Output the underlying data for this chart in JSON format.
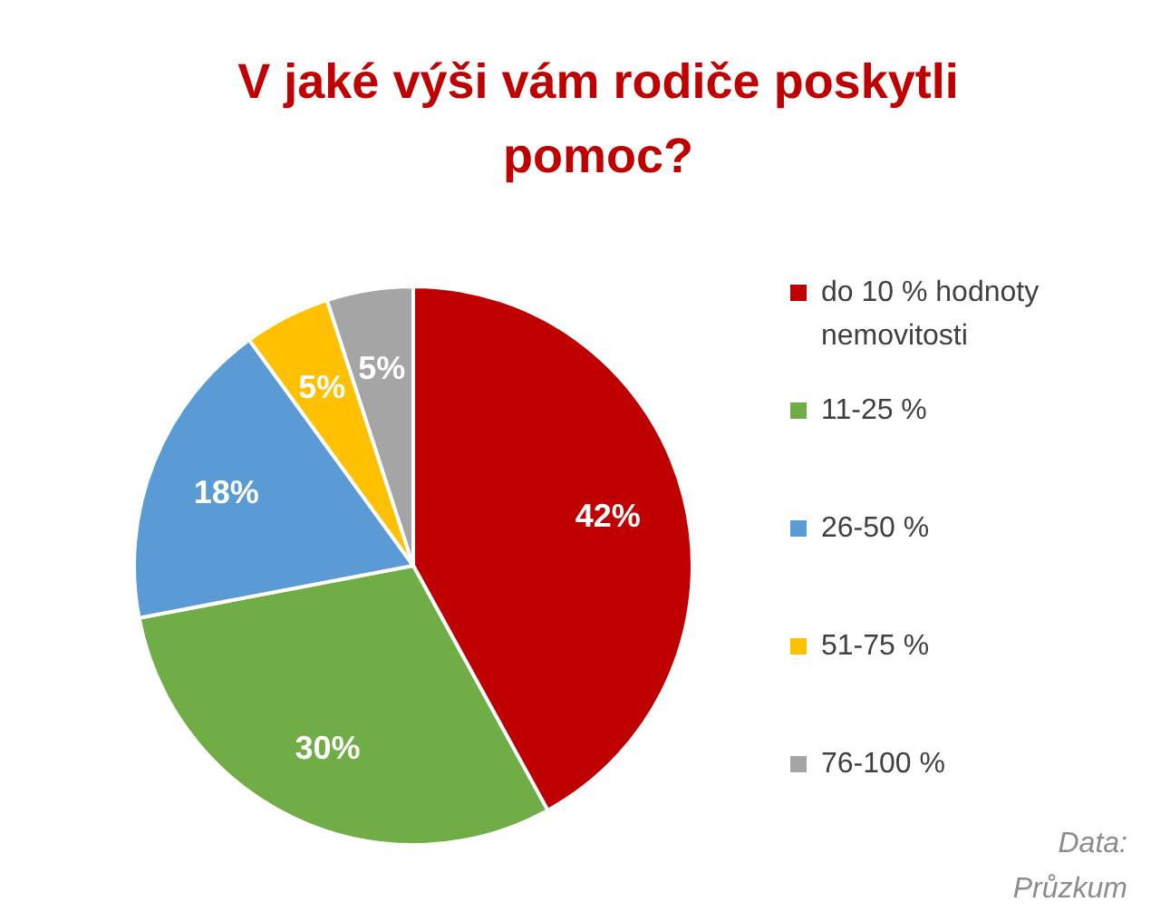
{
  "chart_data": {
    "type": "pie",
    "title": "V jaké výši vám rodiče poskytli pomoc?",
    "categories": [
      "do 10 % hodnoty nemovitosti",
      "11-25 %",
      "26-50 %",
      "51-75 %",
      "76-100 %"
    ],
    "values": [
      42,
      30,
      18,
      5,
      5
    ],
    "colors": [
      "#c00000",
      "#70ad47",
      "#5b9bd5",
      "#ffc000",
      "#a5a5a5"
    ],
    "value_labels": [
      "42%",
      "30%",
      "18%",
      "5%",
      "5%"
    ],
    "legend": "right",
    "annotations": [
      "Data: Průzkum"
    ]
  }
}
